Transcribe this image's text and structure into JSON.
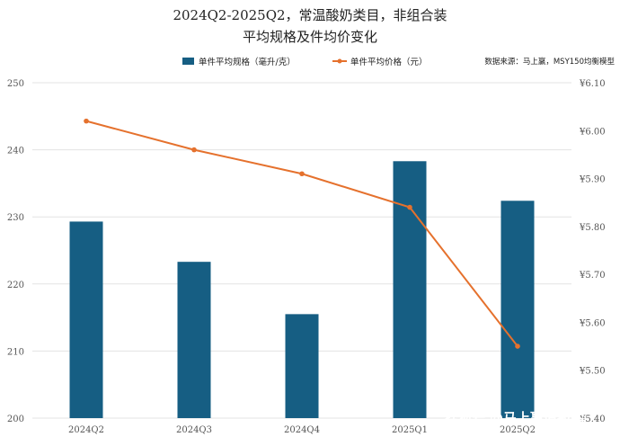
{
  "chart_data": {
    "type": "bar+line",
    "title_lines": [
      "2024Q2-2025Q2，常温酸奶类目，非组合装",
      "平均规格及件均价变化"
    ],
    "source": "数据来源：马上赢，MSY150均衡模型",
    "categories": [
      "2024Q2",
      "2024Q3",
      "2024Q4",
      "2025Q1",
      "2025Q2"
    ],
    "series": [
      {
        "name": "单件平均规格（毫升/克）",
        "type": "bar",
        "axis": "left",
        "color": "#165e83",
        "values": [
          229.3,
          223.3,
          215.5,
          238.3,
          232.4
        ]
      },
      {
        "name": "单件平均价格（元）",
        "type": "line",
        "axis": "right",
        "color": "#e5712d",
        "values": [
          6.02,
          5.96,
          5.91,
          5.84,
          5.55
        ]
      }
    ],
    "y_left": {
      "min": 200,
      "max": 250,
      "ticks": [
        "200",
        "210",
        "220",
        "230",
        "240",
        "250"
      ]
    },
    "y_right": {
      "min": 5.4,
      "max": 6.1,
      "ticks": [
        "¥5.40",
        "¥5.50",
        "¥5.60",
        "¥5.70",
        "¥5.80",
        "¥5.90",
        "¥6.00",
        "¥6.10"
      ]
    },
    "grid": true,
    "legend_position": "top"
  },
  "watermark": {
    "logo": "搜狐号",
    "text": "@马上赢情报站"
  }
}
